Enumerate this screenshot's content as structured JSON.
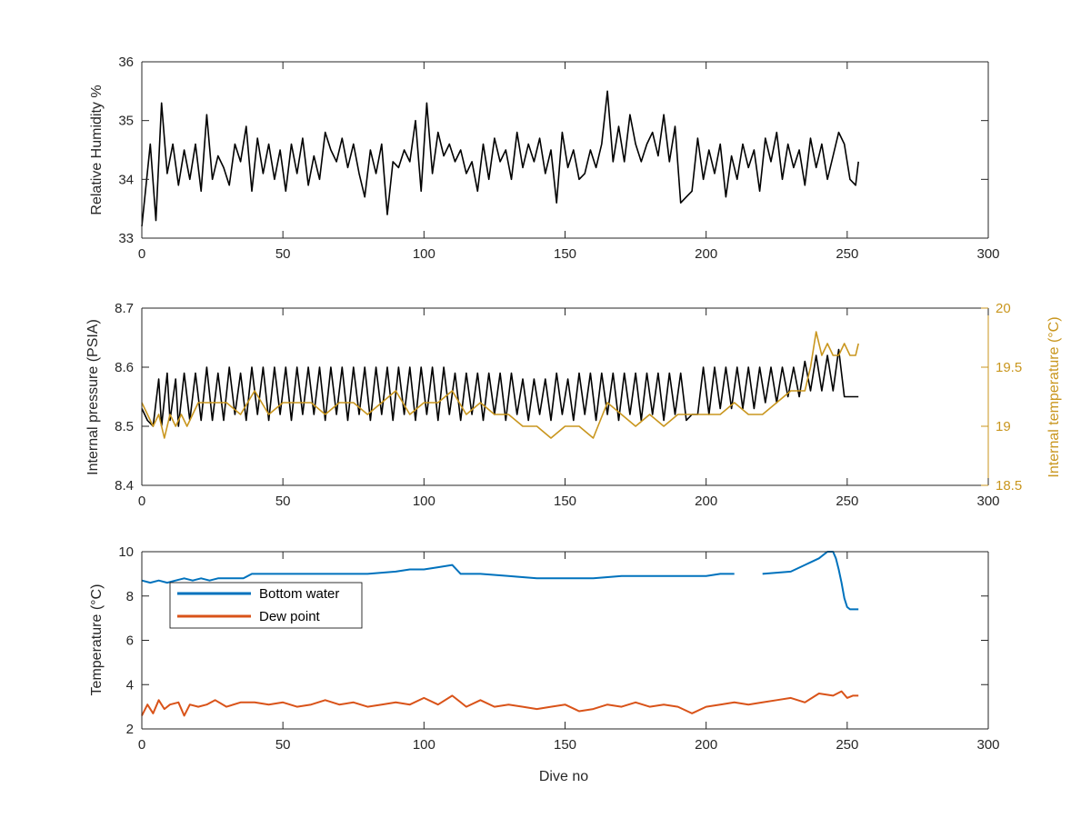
{
  "figure": {
    "xlabel": "Dive no"
  },
  "chart_data": [
    {
      "type": "line",
      "xlabel": "",
      "ylabel": "Relative Humidity %",
      "xlim": [
        0,
        300
      ],
      "ylim": [
        33,
        36
      ],
      "x_ticks": [
        "0",
        "50",
        "100",
        "150",
        "200",
        "250",
        "300"
      ],
      "y_ticks": [
        "33",
        "34",
        "35",
        "36"
      ],
      "series": [
        {
          "color": "#000000",
          "x": [
            0,
            3,
            5,
            7,
            9,
            11,
            13,
            15,
            17,
            19,
            21,
            23,
            25,
            27,
            29,
            31,
            33,
            35,
            37,
            39,
            41,
            43,
            45,
            47,
            49,
            51,
            53,
            55,
            57,
            59,
            61,
            63,
            65,
            67,
            69,
            71,
            73,
            75,
            77,
            79,
            81,
            83,
            85,
            87,
            89,
            91,
            93,
            95,
            97,
            99,
            101,
            103,
            105,
            107,
            109,
            111,
            113,
            115,
            117,
            119,
            121,
            123,
            125,
            127,
            129,
            131,
            133,
            135,
            137,
            139,
            141,
            143,
            145,
            147,
            149,
            151,
            153,
            155,
            157,
            159,
            161,
            163,
            165,
            167,
            169,
            171,
            173,
            175,
            177,
            179,
            181,
            183,
            185,
            187,
            189,
            191,
            193,
            195,
            197,
            199,
            201,
            203,
            205,
            207,
            209,
            211,
            213,
            215,
            217,
            219,
            221,
            223,
            225,
            227,
            229,
            231,
            233,
            235,
            237,
            239,
            241,
            243,
            245,
            247,
            249,
            251,
            253,
            254
          ],
          "y": [
            33.2,
            34.6,
            33.3,
            35.3,
            34.1,
            34.6,
            33.9,
            34.5,
            34.0,
            34.6,
            33.8,
            35.1,
            34.0,
            34.4,
            34.2,
            33.9,
            34.6,
            34.3,
            34.9,
            33.8,
            34.7,
            34.1,
            34.6,
            34.0,
            34.5,
            33.8,
            34.6,
            34.1,
            34.7,
            33.9,
            34.4,
            34.0,
            34.8,
            34.5,
            34.3,
            34.7,
            34.2,
            34.6,
            34.1,
            33.7,
            34.5,
            34.1,
            34.6,
            33.4,
            34.3,
            34.2,
            34.5,
            34.3,
            35.0,
            33.8,
            35.3,
            34.1,
            34.8,
            34.4,
            34.6,
            34.3,
            34.5,
            34.1,
            34.3,
            33.8,
            34.6,
            34.0,
            34.7,
            34.3,
            34.5,
            34.0,
            34.8,
            34.2,
            34.6,
            34.3,
            34.7,
            34.1,
            34.5,
            33.6,
            34.8,
            34.2,
            34.5,
            34.0,
            34.1,
            34.5,
            34.2,
            34.6,
            35.5,
            34.3,
            34.9,
            34.3,
            35.1,
            34.6,
            34.3,
            34.6,
            34.8,
            34.4,
            35.1,
            34.3,
            34.9,
            33.6,
            33.7,
            33.8,
            34.7,
            34.0,
            34.5,
            34.1,
            34.6,
            33.7,
            34.4,
            34.0,
            34.6,
            34.2,
            34.5,
            33.8,
            34.7,
            34.3,
            34.8,
            34.0,
            34.6,
            34.2,
            34.5,
            33.9,
            34.7,
            34.2,
            34.6,
            34.0,
            34.4,
            34.8,
            34.6,
            34.0,
            33.9,
            34.3
          ]
        }
      ]
    },
    {
      "type": "line",
      "xlabel": "",
      "ylabel": "Internal pressure (PSIA)",
      "ylabel_right": "Internal temperature (°C)",
      "xlim": [
        0,
        300
      ],
      "ylim": [
        8.4,
        8.7
      ],
      "ylim_right": [
        18.5,
        20
      ],
      "x_ticks": [
        "0",
        "50",
        "100",
        "150",
        "200",
        "250",
        "300"
      ],
      "y_ticks": [
        "8.4",
        "8.5",
        "8.6",
        "8.7"
      ],
      "y_ticks_right": [
        "18.5",
        "19",
        "19.5",
        "20"
      ],
      "series": [
        {
          "axis": "left",
          "color": "#000000",
          "x": [
            0,
            2,
            4,
            6,
            7,
            9,
            10,
            12,
            13,
            15,
            17,
            19,
            21,
            23,
            25,
            27,
            29,
            31,
            33,
            35,
            37,
            39,
            41,
            43,
            45,
            47,
            49,
            51,
            53,
            55,
            57,
            59,
            61,
            63,
            65,
            67,
            69,
            71,
            73,
            75,
            77,
            79,
            81,
            83,
            85,
            87,
            89,
            91,
            93,
            95,
            97,
            99,
            101,
            103,
            105,
            107,
            109,
            111,
            113,
            115,
            117,
            119,
            121,
            123,
            125,
            127,
            129,
            131,
            133,
            135,
            137,
            139,
            141,
            143,
            145,
            147,
            149,
            151,
            153,
            155,
            157,
            159,
            161,
            163,
            165,
            167,
            169,
            171,
            173,
            175,
            177,
            179,
            181,
            183,
            185,
            187,
            189,
            191,
            193,
            195,
            197,
            199,
            201,
            203,
            205,
            207,
            209,
            211,
            213,
            215,
            217,
            219,
            221,
            223,
            225,
            227,
            229,
            231,
            233,
            235,
            237,
            239,
            241,
            243,
            245,
            247,
            249,
            251,
            253,
            254
          ],
          "y": [
            8.53,
            8.51,
            8.5,
            8.58,
            8.5,
            8.59,
            8.51,
            8.58,
            8.5,
            8.59,
            8.51,
            8.59,
            8.51,
            8.6,
            8.51,
            8.59,
            8.51,
            8.6,
            8.52,
            8.59,
            8.51,
            8.6,
            8.52,
            8.6,
            8.51,
            8.6,
            8.52,
            8.6,
            8.51,
            8.6,
            8.52,
            8.6,
            8.52,
            8.6,
            8.51,
            8.6,
            8.52,
            8.6,
            8.51,
            8.6,
            8.52,
            8.6,
            8.51,
            8.6,
            8.52,
            8.6,
            8.51,
            8.6,
            8.52,
            8.6,
            8.51,
            8.6,
            8.52,
            8.6,
            8.51,
            8.6,
            8.52,
            8.59,
            8.51,
            8.59,
            8.52,
            8.59,
            8.51,
            8.59,
            8.52,
            8.59,
            8.51,
            8.59,
            8.52,
            8.58,
            8.51,
            8.58,
            8.52,
            8.58,
            8.51,
            8.59,
            8.52,
            8.58,
            8.51,
            8.59,
            8.52,
            8.59,
            8.51,
            8.59,
            8.52,
            8.59,
            8.51,
            8.59,
            8.52,
            8.59,
            8.51,
            8.59,
            8.52,
            8.59,
            8.51,
            8.59,
            8.52,
            8.59,
            8.51,
            8.52,
            8.52,
            8.6,
            8.52,
            8.6,
            8.53,
            8.6,
            8.53,
            8.6,
            8.53,
            8.6,
            8.53,
            8.6,
            8.54,
            8.6,
            8.54,
            8.6,
            8.55,
            8.6,
            8.55,
            8.61,
            8.56,
            8.62,
            8.56,
            8.62,
            8.56,
            8.63,
            8.55,
            8.55,
            8.55,
            8.55
          ]
        },
        {
          "axis": "right",
          "color": "#C9961E",
          "x": [
            0,
            2,
            4,
            6,
            8,
            10,
            12,
            14,
            16,
            18,
            20,
            25,
            30,
            35,
            40,
            45,
            50,
            55,
            60,
            65,
            70,
            75,
            80,
            85,
            90,
            95,
            100,
            105,
            110,
            115,
            120,
            125,
            130,
            135,
            140,
            145,
            150,
            155,
            160,
            165,
            170,
            175,
            180,
            185,
            190,
            195,
            200,
            205,
            210,
            215,
            220,
            225,
            230,
            233,
            235,
            237,
            239,
            241,
            243,
            245,
            247,
            249,
            251,
            253,
            254
          ],
          "y": [
            19.2,
            19.1,
            19.0,
            19.1,
            18.9,
            19.1,
            19.0,
            19.1,
            19.0,
            19.1,
            19.2,
            19.2,
            19.2,
            19.1,
            19.3,
            19.1,
            19.2,
            19.2,
            19.2,
            19.1,
            19.2,
            19.2,
            19.1,
            19.2,
            19.3,
            19.1,
            19.2,
            19.2,
            19.3,
            19.1,
            19.2,
            19.1,
            19.1,
            19.0,
            19.0,
            18.9,
            19.0,
            19.0,
            18.9,
            19.2,
            19.1,
            19.0,
            19.1,
            19.0,
            19.1,
            19.1,
            19.1,
            19.1,
            19.2,
            19.1,
            19.1,
            19.2,
            19.3,
            19.3,
            19.3,
            19.5,
            19.8,
            19.6,
            19.7,
            19.6,
            19.6,
            19.7,
            19.6,
            19.6,
            19.7
          ]
        }
      ]
    },
    {
      "type": "line",
      "xlabel": "Dive no",
      "ylabel": "Temperature (°C)",
      "xlim": [
        0,
        300
      ],
      "ylim": [
        2,
        10
      ],
      "x_ticks": [
        "0",
        "50",
        "100",
        "150",
        "200",
        "250",
        "300"
      ],
      "y_ticks": [
        "2",
        "4",
        "6",
        "8",
        "10"
      ],
      "legend": {
        "placement": "upper-left",
        "entries": [
          "Bottom water",
          "Dew point"
        ]
      },
      "series": [
        {
          "name": "Bottom water",
          "color": "#0072BD",
          "x": [
            0,
            3,
            6,
            9,
            12,
            15,
            18,
            21,
            24,
            27,
            30,
            33,
            36,
            39,
            42,
            45,
            50,
            60,
            70,
            80,
            90,
            95,
            100,
            105,
            110,
            113,
            120,
            130,
            140,
            150,
            160,
            170,
            180,
            190,
            195,
            200,
            205,
            210,
            213,
            220,
            230,
            235,
            240,
            243,
            245,
            246,
            247,
            248,
            249,
            250,
            251,
            252,
            253,
            254
          ],
          "y": [
            8.7,
            8.6,
            8.7,
            8.6,
            8.7,
            8.8,
            8.7,
            8.8,
            8.7,
            8.8,
            8.8,
            8.8,
            8.8,
            9.0,
            9.0,
            9.0,
            9.0,
            9.0,
            9.0,
            9.0,
            9.1,
            9.2,
            9.2,
            9.3,
            9.4,
            9.0,
            9.0,
            8.9,
            8.8,
            8.8,
            8.8,
            8.9,
            8.9,
            8.9,
            8.9,
            8.9,
            9.0,
            9.0,
            null,
            9.0,
            9.1,
            9.4,
            9.7,
            10.0,
            10.0,
            9.7,
            9.2,
            8.6,
            7.9,
            7.5,
            7.4,
            7.4,
            7.4,
            7.4
          ]
        },
        {
          "name": "Dew point",
          "color": "#D95319",
          "x": [
            0,
            2,
            4,
            6,
            8,
            10,
            13,
            15,
            17,
            20,
            23,
            26,
            30,
            35,
            40,
            45,
            50,
            55,
            60,
            65,
            70,
            75,
            80,
            85,
            90,
            95,
            100,
            105,
            110,
            115,
            120,
            125,
            130,
            135,
            140,
            145,
            150,
            155,
            160,
            165,
            170,
            175,
            180,
            185,
            190,
            195,
            200,
            205,
            210,
            215,
            220,
            225,
            230,
            235,
            240,
            245,
            248,
            250,
            252,
            254
          ],
          "y": [
            2.6,
            3.1,
            2.7,
            3.3,
            2.9,
            3.1,
            3.2,
            2.6,
            3.1,
            3.0,
            3.1,
            3.3,
            3.0,
            3.2,
            3.2,
            3.1,
            3.2,
            3.0,
            3.1,
            3.3,
            3.1,
            3.2,
            3.0,
            3.1,
            3.2,
            3.1,
            3.4,
            3.1,
            3.5,
            3.0,
            3.3,
            3.0,
            3.1,
            3.0,
            2.9,
            3.0,
            3.1,
            2.8,
            2.9,
            3.1,
            3.0,
            3.2,
            3.0,
            3.1,
            3.0,
            2.7,
            3.0,
            3.1,
            3.2,
            3.1,
            3.2,
            3.3,
            3.4,
            3.2,
            3.6,
            3.5,
            3.7,
            3.4,
            3.5,
            3.5
          ]
        }
      ]
    }
  ]
}
